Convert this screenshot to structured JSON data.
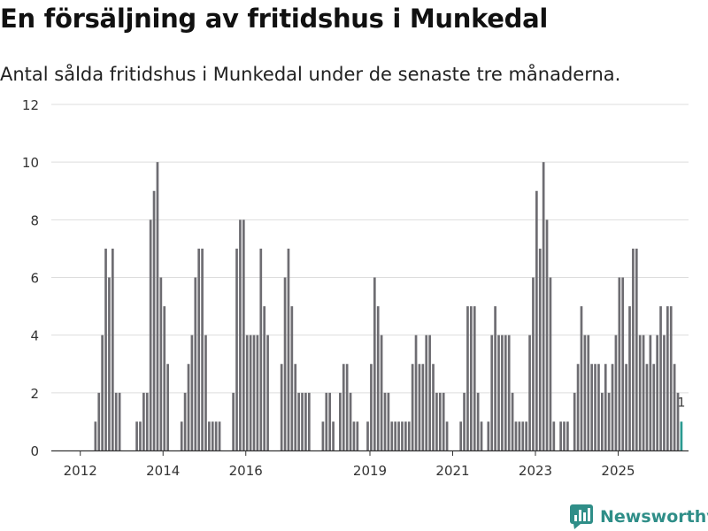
{
  "title": "En försäljning av fritidshus i Munkedal",
  "subtitle": "Antal sålda fritidshus i Munkedal under de senaste tre månaderna.",
  "brand": {
    "name": "Newsworthy"
  },
  "colors": {
    "bar": "#6e6d72",
    "highlight": "#2a9990",
    "grid": "#dddddd",
    "axis": "#333333",
    "brand": "#2f8e88"
  },
  "chart_data": {
    "type": "bar",
    "title": "En försäljning av fritidshus i Munkedal",
    "ylim": [
      0,
      12
    ],
    "yticks": [
      0,
      2,
      4,
      6,
      8,
      10,
      12
    ],
    "xlim": [
      2011.3,
      2026.7
    ],
    "xticks": [
      2012,
      2014,
      2016,
      2019,
      2021,
      2023,
      2025
    ],
    "x_start": 2011.45,
    "x_step": 0.0833,
    "values": [
      0,
      0,
      0,
      0,
      0,
      0,
      0,
      0,
      0,
      0,
      0,
      1,
      2,
      4,
      7,
      6,
      7,
      2,
      2,
      0,
      0,
      0,
      0,
      1,
      1,
      2,
      2,
      8,
      9,
      10,
      6,
      5,
      3,
      0,
      0,
      0,
      1,
      2,
      3,
      4,
      6,
      7,
      7,
      4,
      1,
      1,
      1,
      1,
      0,
      0,
      0,
      2,
      7,
      8,
      8,
      4,
      4,
      4,
      4,
      7,
      5,
      4,
      0,
      0,
      0,
      3,
      6,
      7,
      5,
      3,
      2,
      2,
      2,
      2,
      0,
      0,
      0,
      1,
      2,
      2,
      1,
      0,
      2,
      3,
      3,
      2,
      1,
      1,
      0,
      0,
      1,
      3,
      6,
      5,
      4,
      2,
      2,
      1,
      1,
      1,
      1,
      1,
      1,
      3,
      4,
      3,
      3,
      4,
      4,
      3,
      2,
      2,
      2,
      1,
      0,
      0,
      0,
      1,
      2,
      5,
      5,
      5,
      2,
      1,
      0,
      1,
      4,
      5,
      4,
      4,
      4,
      4,
      2,
      1,
      1,
      1,
      1,
      4,
      6,
      9,
      7,
      10,
      8,
      6,
      1,
      0,
      1,
      1,
      1,
      0,
      2,
      3,
      5,
      4,
      4,
      3,
      3,
      3,
      2,
      3,
      2,
      3,
      4,
      6,
      6,
      3,
      5,
      7,
      7,
      4,
      4,
      3,
      4,
      3,
      4,
      5,
      4,
      5,
      5,
      3,
      2,
      1
    ],
    "highlight_label": "1",
    "series": [
      {
        "name": "Sålda fritidshus",
        "color": "#6e6d72"
      }
    ]
  }
}
